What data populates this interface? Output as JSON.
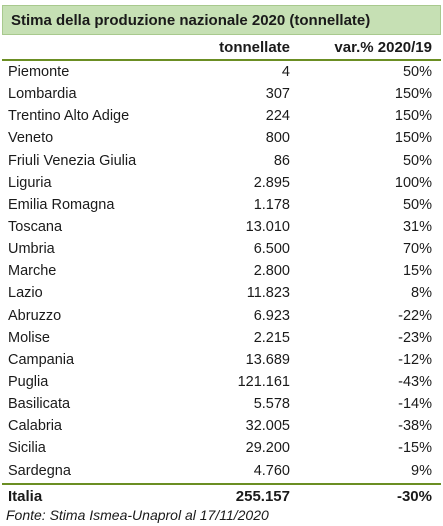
{
  "title": "Stima della produzione nazionale 2020 (tonnellate)",
  "headers": {
    "tonnes": "tonnellate",
    "variation": "var.% 2020/19"
  },
  "rows": [
    {
      "region": "Piemonte",
      "tonnes": "4",
      "variation": "50%"
    },
    {
      "region": "Lombardia",
      "tonnes": "307",
      "variation": "150%"
    },
    {
      "region": "Trentino Alto Adige",
      "tonnes": "224",
      "variation": "150%"
    },
    {
      "region": "Veneto",
      "tonnes": "800",
      "variation": "150%"
    },
    {
      "region": "Friuli Venezia Giulia",
      "tonnes": "86",
      "variation": "50%"
    },
    {
      "region": "Liguria",
      "tonnes": "2.895",
      "variation": "100%"
    },
    {
      "region": "Emilia Romagna",
      "tonnes": "1.178",
      "variation": "50%"
    },
    {
      "region": "Toscana",
      "tonnes": "13.010",
      "variation": "31%"
    },
    {
      "region": "Umbria",
      "tonnes": "6.500",
      "variation": "70%"
    },
    {
      "region": "Marche",
      "tonnes": "2.800",
      "variation": "15%"
    },
    {
      "region": "Lazio",
      "tonnes": "11.823",
      "variation": "8%"
    },
    {
      "region": "Abruzzo",
      "tonnes": "6.923",
      "variation": "-22%"
    },
    {
      "region": "Molise",
      "tonnes": "2.215",
      "variation": "-23%"
    },
    {
      "region": "Campania",
      "tonnes": "13.689",
      "variation": "-12%"
    },
    {
      "region": "Puglia",
      "tonnes": "121.161",
      "variation": "-43%"
    },
    {
      "region": "Basilicata",
      "tonnes": "5.578",
      "variation": "-14%"
    },
    {
      "region": "Calabria",
      "tonnes": "32.005",
      "variation": "-38%"
    },
    {
      "region": "Sicilia",
      "tonnes": "29.200",
      "variation": "-15%"
    },
    {
      "region": "Sardegna",
      "tonnes": "4.760",
      "variation": "9%"
    }
  ],
  "total": {
    "region": "Italia",
    "tonnes": "255.157",
    "variation": "-30%"
  },
  "source": "Fonte: Stima Ismea-Unaprol al 17/11/2020",
  "colors": {
    "title_bg": "#c6e0b4",
    "rule": "#6b8e23"
  }
}
